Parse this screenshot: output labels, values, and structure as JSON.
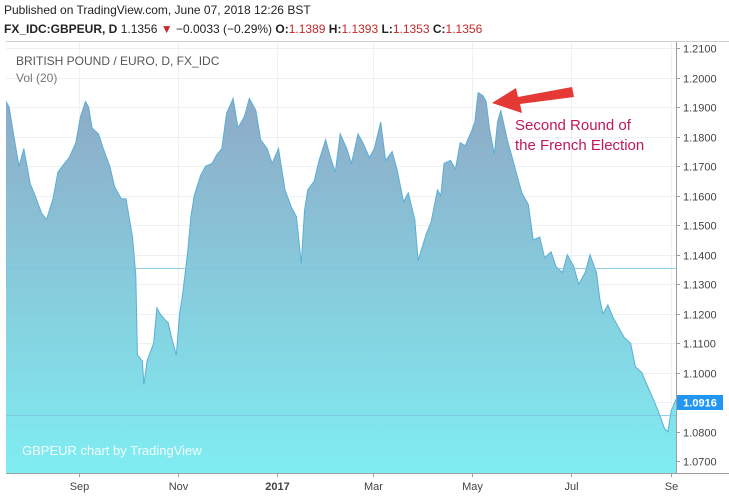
{
  "header": {
    "published": "Published on TradingView.com, June 07, 2018 12:26 BST",
    "symbol": "FX_IDC:GBPEUR, D",
    "last": "1.1356",
    "arrow": "▼",
    "change": "−0.0033 (−0.29%)",
    "open_label": "O:",
    "open": "1.1389",
    "high_label": "H:",
    "high": "1.1393",
    "low_label": "L:",
    "low": "1.1353",
    "close_label": "C:",
    "close": "1.1356"
  },
  "colors": {
    "down": "#c62828",
    "line": "#5aaed7",
    "fill_top": "#8ea9c6",
    "fill_bottom": "#7fedf2",
    "annotation": "#c2185b",
    "arrow": "#e53935",
    "last_badge": "#2196f3"
  },
  "chart_data": {
    "type": "area",
    "title": "BRITISH POUND / EURO, D, FX_IDC",
    "indicator": "Vol (20)",
    "watermark": "GBPEUR chart by TradingView",
    "ylim": [
      1.066,
      1.2125
    ],
    "yticks": [
      "1.2100",
      "1.2000",
      "1.1900",
      "1.1800",
      "1.1700",
      "1.1600",
      "1.1500",
      "1.1400",
      "1.1300",
      "1.1200",
      "1.1100",
      "1.1000",
      "1.0900",
      "1.0800",
      "1.0700"
    ],
    "xticks": [
      {
        "date": "2016-09-01",
        "label": "Sep"
      },
      {
        "date": "2016-11-01",
        "label": "Nov"
      },
      {
        "date": "2017-01-01",
        "label": "2017"
      },
      {
        "date": "2017-03-01",
        "label": "Mar"
      },
      {
        "date": "2017-05-01",
        "label": "May"
      },
      {
        "date": "2017-07-01",
        "label": "Jul"
      },
      {
        "date": "2017-09-01",
        "label": "Se"
      }
    ],
    "last_price_label": "1.0916",
    "hlines": [
      1.1356,
      1.0855
    ],
    "annotation": {
      "lines": [
        "Second Round of",
        "the French Election"
      ]
    },
    "series": [
      {
        "points": [
          [
            "2016-07-18",
            1.192
          ],
          [
            "2016-07-20",
            1.19
          ],
          [
            "2016-07-22",
            1.183
          ],
          [
            "2016-07-26",
            1.17
          ],
          [
            "2016-07-29",
            1.176
          ],
          [
            "2016-08-02",
            1.164
          ],
          [
            "2016-08-05",
            1.16
          ],
          [
            "2016-08-09",
            1.154
          ],
          [
            "2016-08-12",
            1.152
          ],
          [
            "2016-08-16",
            1.159
          ],
          [
            "2016-08-19",
            1.168
          ],
          [
            "2016-08-23",
            1.171
          ],
          [
            "2016-08-26",
            1.173
          ],
          [
            "2016-08-30",
            1.178
          ],
          [
            "2016-09-02",
            1.187
          ],
          [
            "2016-09-05",
            1.192
          ],
          [
            "2016-09-07",
            1.19
          ],
          [
            "2016-09-09",
            1.183
          ],
          [
            "2016-09-13",
            1.181
          ],
          [
            "2016-09-16",
            1.176
          ],
          [
            "2016-09-20",
            1.17
          ],
          [
            "2016-09-23",
            1.163
          ],
          [
            "2016-09-27",
            1.159
          ],
          [
            "2016-09-30",
            1.159
          ],
          [
            "2016-10-04",
            1.146
          ],
          [
            "2016-10-06",
            1.133
          ],
          [
            "2016-10-07",
            1.106
          ],
          [
            "2016-10-10",
            1.104
          ],
          [
            "2016-10-11",
            1.096
          ],
          [
            "2016-10-13",
            1.104
          ],
          [
            "2016-10-17",
            1.11
          ],
          [
            "2016-10-19",
            1.122
          ],
          [
            "2016-10-21",
            1.12
          ],
          [
            "2016-10-24",
            1.118
          ],
          [
            "2016-10-26",
            1.117
          ],
          [
            "2016-10-28",
            1.112
          ],
          [
            "2016-10-31",
            1.106
          ],
          [
            "2016-11-02",
            1.12
          ],
          [
            "2016-11-04",
            1.127
          ],
          [
            "2016-11-07",
            1.141
          ],
          [
            "2016-11-09",
            1.153
          ],
          [
            "2016-11-11",
            1.16
          ],
          [
            "2016-11-15",
            1.167
          ],
          [
            "2016-11-18",
            1.17
          ],
          [
            "2016-11-22",
            1.171
          ],
          [
            "2016-11-25",
            1.174
          ],
          [
            "2016-11-28",
            1.176
          ],
          [
            "2016-12-01",
            1.188
          ],
          [
            "2016-12-05",
            1.193
          ],
          [
            "2016-12-08",
            1.183
          ],
          [
            "2016-12-12",
            1.187
          ],
          [
            "2016-12-15",
            1.193
          ],
          [
            "2016-12-19",
            1.189
          ],
          [
            "2016-12-22",
            1.179
          ],
          [
            "2016-12-26",
            1.176
          ],
          [
            "2016-12-29",
            1.171
          ],
          [
            "2017-01-02",
            1.176
          ],
          [
            "2017-01-04",
            1.169
          ],
          [
            "2017-01-06",
            1.162
          ],
          [
            "2017-01-10",
            1.156
          ],
          [
            "2017-01-13",
            1.153
          ],
          [
            "2017-01-16",
            1.137
          ],
          [
            "2017-01-18",
            1.155
          ],
          [
            "2017-01-20",
            1.162
          ],
          [
            "2017-01-24",
            1.165
          ],
          [
            "2017-01-27",
            1.172
          ],
          [
            "2017-01-31",
            1.179
          ],
          [
            "2017-02-03",
            1.173
          ],
          [
            "2017-02-06",
            1.168
          ],
          [
            "2017-02-09",
            1.181
          ],
          [
            "2017-02-13",
            1.176
          ],
          [
            "2017-02-16",
            1.171
          ],
          [
            "2017-02-20",
            1.181
          ],
          [
            "2017-02-23",
            1.178
          ],
          [
            "2017-02-27",
            1.173
          ],
          [
            "2017-03-02",
            1.176
          ],
          [
            "2017-03-06",
            1.185
          ],
          [
            "2017-03-09",
            1.172
          ],
          [
            "2017-03-13",
            1.175
          ],
          [
            "2017-03-16",
            1.169
          ],
          [
            "2017-03-20",
            1.158
          ],
          [
            "2017-03-23",
            1.161
          ],
          [
            "2017-03-27",
            1.152
          ],
          [
            "2017-03-29",
            1.138
          ],
          [
            "2017-04-03",
            1.147
          ],
          [
            "2017-04-06",
            1.151
          ],
          [
            "2017-04-10",
            1.162
          ],
          [
            "2017-04-12",
            1.16
          ],
          [
            "2017-04-14",
            1.171
          ],
          [
            "2017-04-18",
            1.172
          ],
          [
            "2017-04-21",
            1.169
          ],
          [
            "2017-04-24",
            1.178
          ],
          [
            "2017-04-27",
            1.177
          ],
          [
            "2017-05-01",
            1.182
          ],
          [
            "2017-05-03",
            1.185
          ],
          [
            "2017-05-05",
            1.195
          ],
          [
            "2017-05-08",
            1.194
          ],
          [
            "2017-05-10",
            1.192
          ],
          [
            "2017-05-12",
            1.183
          ],
          [
            "2017-05-15",
            1.174
          ],
          [
            "2017-05-17",
            1.185
          ],
          [
            "2017-05-19",
            1.189
          ],
          [
            "2017-05-23",
            1.179
          ],
          [
            "2017-05-26",
            1.173
          ],
          [
            "2017-05-30",
            1.165
          ],
          [
            "2017-06-01",
            1.161
          ],
          [
            "2017-06-05",
            1.157
          ],
          [
            "2017-06-08",
            1.145
          ],
          [
            "2017-06-12",
            1.146
          ],
          [
            "2017-06-15",
            1.139
          ],
          [
            "2017-06-19",
            1.141
          ],
          [
            "2017-06-22",
            1.136
          ],
          [
            "2017-06-26",
            1.134
          ],
          [
            "2017-06-29",
            1.14
          ],
          [
            "2017-07-03",
            1.136
          ],
          [
            "2017-07-06",
            1.13
          ],
          [
            "2017-07-10",
            1.134
          ],
          [
            "2017-07-13",
            1.14
          ],
          [
            "2017-07-17",
            1.134
          ],
          [
            "2017-07-19",
            1.125
          ],
          [
            "2017-07-21",
            1.12
          ],
          [
            "2017-07-24",
            1.123
          ],
          [
            "2017-07-27",
            1.119
          ],
          [
            "2017-07-31",
            1.115
          ],
          [
            "2017-08-03",
            1.112
          ],
          [
            "2017-08-07",
            1.11
          ],
          [
            "2017-08-10",
            1.102
          ],
          [
            "2017-08-14",
            1.1
          ],
          [
            "2017-08-17",
            1.096
          ],
          [
            "2017-08-21",
            1.091
          ],
          [
            "2017-08-24",
            1.087
          ],
          [
            "2017-08-28",
            1.081
          ],
          [
            "2017-08-30",
            1.08
          ],
          [
            "2017-09-01",
            1.087
          ],
          [
            "2017-09-04",
            1.091
          ]
        ]
      }
    ]
  }
}
